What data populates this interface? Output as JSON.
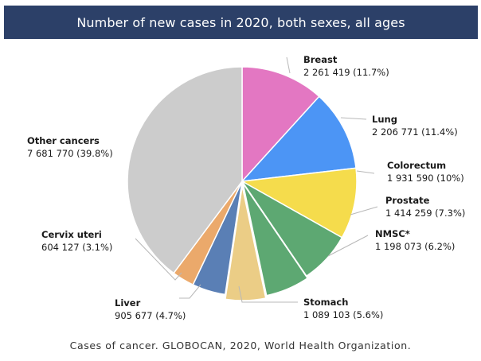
{
  "chart_data": {
    "type": "pie",
    "title": "Number of new cases in 2020, both sexes, all ages",
    "caption": "Cases of cancer. GLOBOCAN, 2020, World Health Organization.",
    "slices": [
      {
        "name": "Breast",
        "value": 2261419,
        "value_label": "2 261 419 (11.7%)",
        "percent": 11.7,
        "color": "#e377c2"
      },
      {
        "name": "Lung",
        "value": 2206771,
        "value_label": "2 206 771 (11.4%)",
        "percent": 11.4,
        "color": "#4c95f5"
      },
      {
        "name": "Colorectum",
        "value": 1931590,
        "value_label": "1 931 590 (10%)",
        "percent": 10.0,
        "color": "#f5dc4c"
      },
      {
        "name": "Prostate",
        "value": 1414259,
        "value_label": "1 414 259 (7.3%)",
        "percent": 7.3,
        "color": "#5da872"
      },
      {
        "name": "NMSC*",
        "value": 1198073,
        "value_label": "1 198 073 (6.2%)",
        "percent": 6.2,
        "color": "#5da872"
      },
      {
        "name": "Stomach",
        "value": 1089103,
        "value_label": "1 089 103 (5.6%)",
        "percent": 5.6,
        "color": "#ebcd86"
      },
      {
        "name": "Liver",
        "value": 905677,
        "value_label": "905 677 (4.7%)",
        "percent": 4.7,
        "color": "#5a7fb5"
      },
      {
        "name": "Cervix uteri",
        "value": 604127,
        "value_label": "604 127 (3.1%)",
        "percent": 3.1,
        "color": "#eba96b"
      },
      {
        "name": "Other cancers",
        "value": 7681770,
        "value_label": "7 681 770 (39.8%)",
        "percent": 39.8,
        "color": "#ed7c33"
      },
      {
        "name": "",
        "value": 0,
        "value_label": "",
        "percent": 0,
        "color": "#cccccc"
      }
    ]
  }
}
